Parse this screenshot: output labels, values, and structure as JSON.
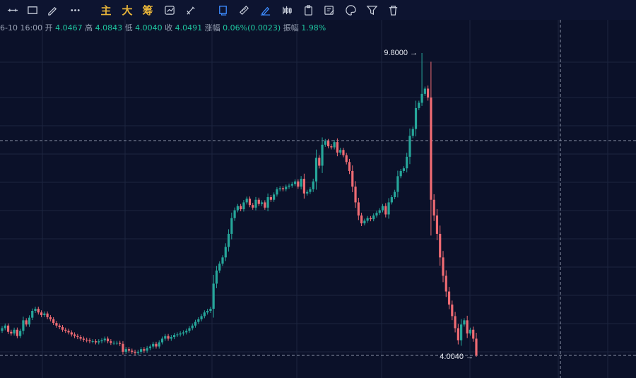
{
  "toolbar": {
    "tools": [
      {
        "name": "horizontal-line-tool",
        "icon": "horizontal-line-icon"
      },
      {
        "name": "rectangle-tool",
        "icon": "rectangle-icon"
      },
      {
        "name": "pencil-tool",
        "icon": "pencil-icon"
      },
      {
        "name": "more-tools",
        "icon": "more-dots-icon"
      },
      {
        "name": "main-force-button",
        "label": "主"
      },
      {
        "name": "big-order-button",
        "label": "大"
      },
      {
        "name": "chip-distribution-button",
        "label": "筹"
      },
      {
        "name": "sync-drawing-tool",
        "icon": "sync-icon"
      },
      {
        "name": "eraser-pen-tool",
        "icon": "eraser-pen-icon"
      },
      {
        "name": "magnet-drawing-tool",
        "icon": "magnet-icon",
        "active": true
      },
      {
        "name": "ruler-tool",
        "icon": "ruler-icon"
      },
      {
        "name": "brush-tool",
        "icon": "brush-icon",
        "active": true
      },
      {
        "name": "candle-style-tool",
        "icon": "candles-icon"
      },
      {
        "name": "copy-tool",
        "icon": "clipboard-icon"
      },
      {
        "name": "notes-tool",
        "icon": "edit-note-icon"
      },
      {
        "name": "color-tool",
        "icon": "palette-icon"
      },
      {
        "name": "filter-tool",
        "icon": "filter-icon"
      },
      {
        "name": "delete-tool",
        "icon": "trash-icon"
      }
    ]
  },
  "info": {
    "date": "6-10 16:00",
    "open_label": "开",
    "open": "4.0467",
    "high_label": "高",
    "high": "4.0843",
    "low_label": "低",
    "low": "4.0040",
    "close_label": "收",
    "close": "4.0491",
    "change_label": "涨幅",
    "change": "0.06%(0.0023)",
    "amplitude_label": "振幅",
    "amplitude": "1.98%"
  },
  "colors": {
    "background": "#0b1129",
    "up": "#26a69a",
    "down": "#ef6b73",
    "grid": "#1c2540",
    "crosshair": "#8b93a7"
  },
  "chart_data": {
    "type": "candlestick",
    "max_label": "9.8000",
    "min_label": "4.0040",
    "closes": [
      4.55,
      4.6,
      4.48,
      4.45,
      4.52,
      4.4,
      4.5,
      4.7,
      4.62,
      4.75,
      4.88,
      4.92,
      4.85,
      4.8,
      4.83,
      4.76,
      4.72,
      4.65,
      4.6,
      4.57,
      4.52,
      4.5,
      4.47,
      4.43,
      4.4,
      4.38,
      4.35,
      4.33,
      4.32,
      4.3,
      4.3,
      4.28,
      4.3,
      4.32,
      4.35,
      4.3,
      4.27,
      4.27,
      4.27,
      4.25,
      4.1,
      4.15,
      4.12,
      4.1,
      4.08,
      4.1,
      4.15,
      4.12,
      4.17,
      4.2,
      4.25,
      4.2,
      4.28,
      4.35,
      4.4,
      4.35,
      4.38,
      4.42,
      4.43,
      4.45,
      4.47,
      4.5,
      4.55,
      4.6,
      4.67,
      4.72,
      4.78,
      4.85,
      4.88,
      4.92,
      5.4,
      5.65,
      5.78,
      5.9,
      6.1,
      6.35,
      6.65,
      6.8,
      6.88,
      6.82,
      6.95,
      7.02,
      6.9,
      6.85,
      7.0,
      6.92,
      6.95,
      6.85,
      7.05,
      7.0,
      7.1,
      7.2,
      7.22,
      7.2,
      7.25,
      7.27,
      7.3,
      7.35,
      7.25,
      7.4,
      7.12,
      7.15,
      7.2,
      7.35,
      7.8,
      7.65,
      8.05,
      8.12,
      8.02,
      8.0,
      8.1,
      7.9,
      7.95,
      7.85,
      7.72,
      7.55,
      7.25,
      6.95,
      6.7,
      6.55,
      6.6,
      6.65,
      6.63,
      6.7,
      6.75,
      6.8,
      6.88,
      6.72,
      6.95,
      7.05,
      7.15,
      7.45,
      7.55,
      7.6,
      7.82,
      8.22,
      8.35,
      8.75,
      8.85,
      9.02,
      9.12,
      8.95,
      7.0,
      6.7,
      6.35,
      5.9,
      5.55,
      5.25,
      5.0,
      4.78,
      4.55,
      4.32,
      4.62,
      4.7,
      4.45,
      4.52,
      4.35,
      4.03
    ],
    "note": "OHLC approximated from the candle shapes; daily series"
  }
}
